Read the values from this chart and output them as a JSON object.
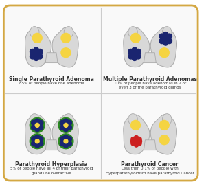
{
  "background_color": "#ffffff",
  "border_color": "#d4a843",
  "panels": [
    {
      "id": "top_left",
      "title": "Single Parathyroid Adenoma",
      "subtitle": "85% of people have one adenoma",
      "type": "single"
    },
    {
      "id": "top_right",
      "title": "Multiple Parathyroid Adenomas",
      "subtitle": "10% of people have adenomas in 2 or\neven 3 of the parathyroid glands",
      "type": "multiple"
    },
    {
      "id": "bottom_left",
      "title": "Parathyroid Hyperplasia",
      "subtitle": "5% of people have all 4 of their parathyroid\nglands be overactive",
      "type": "hyperplasia"
    },
    {
      "id": "bottom_right",
      "title": "Parathyroid Cancer",
      "subtitle": "Less then 0.1% of people with\nHyperparathyroidism have parathyroid Cancer",
      "type": "cancer"
    }
  ],
  "gland_color": "#d8d8d8",
  "gland_edge": "#aaaaaa",
  "yellow": "#f5d442",
  "dark_blue": "#1a2570",
  "green": "#2d8a20",
  "red": "#cc2020",
  "title_fontsize": 5.5,
  "subtitle_fontsize": 4.0,
  "text_color": "#333333"
}
